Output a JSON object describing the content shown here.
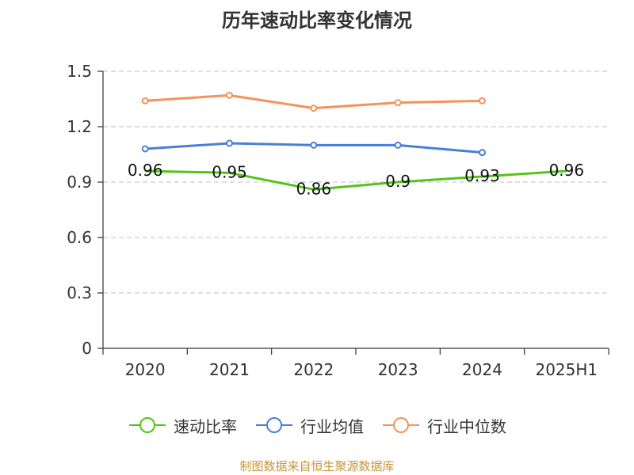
{
  "chart_data": {
    "type": "line",
    "title": "历年速动比率变化情况",
    "categories": [
      "2020",
      "2021",
      "2022",
      "2023",
      "2024",
      "2025H1"
    ],
    "y_ticks": [
      "0",
      "0.3",
      "0.6",
      "0.9",
      "1.2",
      "1.5"
    ],
    "ylim": [
      0,
      1.5
    ],
    "grid": "horizontal dashed",
    "legend_position": "bottom",
    "series": [
      {
        "name": "速动比率",
        "color": "#52c41a",
        "values": [
          0.96,
          0.95,
          0.86,
          0.9,
          0.93,
          0.96
        ],
        "labels": [
          "0.96",
          "0.95",
          "0.86",
          "0.9",
          "0.93",
          "0.96"
        ],
        "show_labels": true
      },
      {
        "name": "行业均值",
        "color": "#4a7fd8",
        "values": [
          1.08,
          1.11,
          1.1,
          1.1,
          1.06,
          null
        ],
        "show_labels": false
      },
      {
        "name": "行业中位数",
        "color": "#f4935a",
        "values": [
          1.34,
          1.37,
          1.3,
          1.33,
          1.34,
          null
        ],
        "show_labels": false
      }
    ]
  },
  "source": "制图数据来自恒生聚源数据库"
}
